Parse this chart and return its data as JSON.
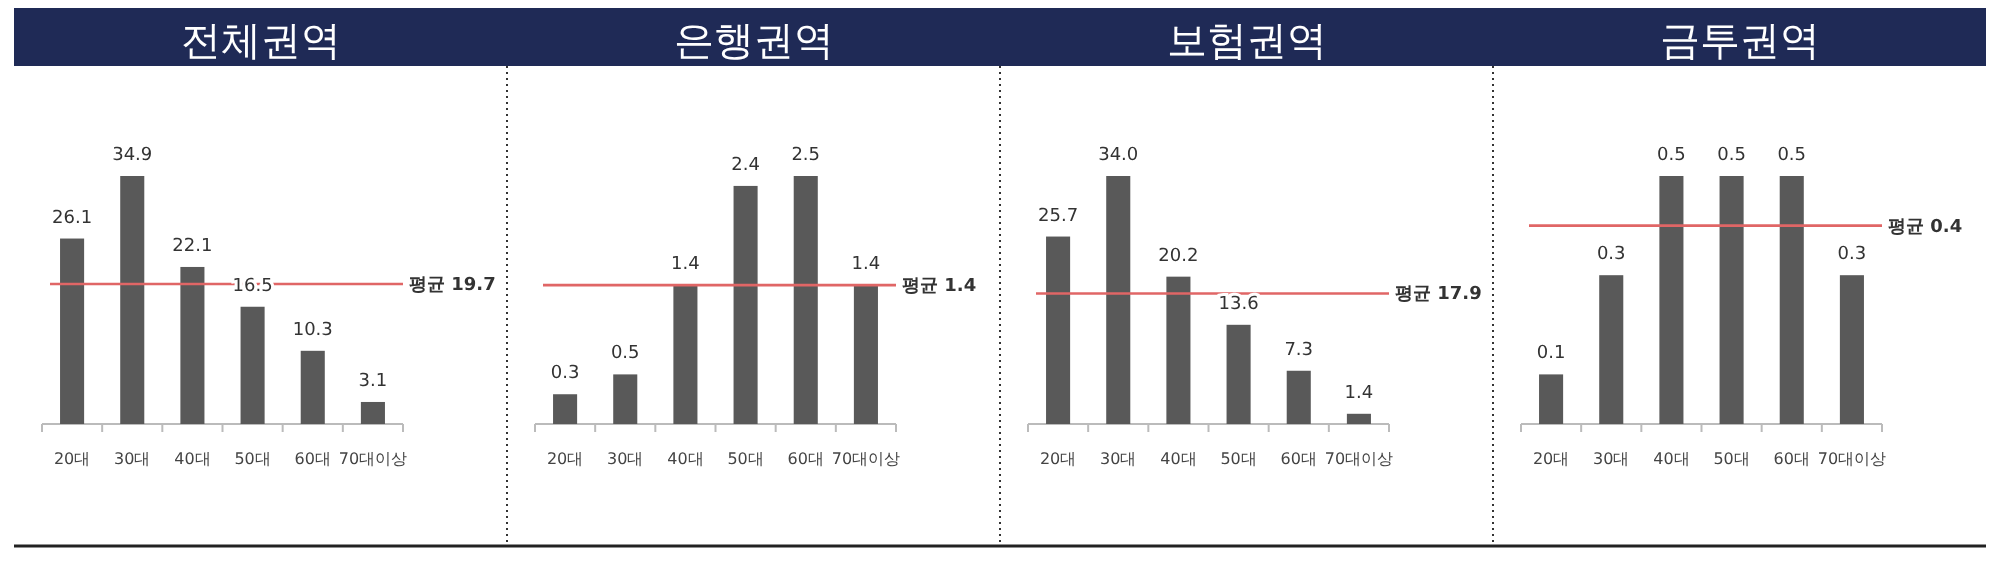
{
  "chart_data": [
    {
      "type": "bar",
      "title": "전체권역",
      "categories": [
        "20대",
        "30대",
        "40대",
        "50대",
        "60대",
        "70대이상"
      ],
      "values": [
        26.1,
        34.9,
        22.1,
        16.5,
        10.3,
        3.1
      ],
      "color": "#595959",
      "data_labels": true,
      "ref_lines": [
        {
          "axis": "y",
          "value": 19.7,
          "label": "평균 19.7",
          "color": "#e06666"
        }
      ]
    },
    {
      "type": "bar",
      "title": "은행권역",
      "categories": [
        "20대",
        "30대",
        "40대",
        "50대",
        "60대",
        "70대이상"
      ],
      "values": [
        0.3,
        0.5,
        1.4,
        2.4,
        2.5,
        1.4
      ],
      "color": "#595959",
      "data_labels": true,
      "ref_lines": [
        {
          "axis": "y",
          "value": 1.4,
          "label": "평균 1.4",
          "color": "#e06666"
        }
      ]
    },
    {
      "type": "bar",
      "title": "보험권역",
      "categories": [
        "20대",
        "30대",
        "40대",
        "50대",
        "60대",
        "70대이상"
      ],
      "values": [
        25.7,
        34.0,
        20.2,
        13.6,
        7.3,
        1.4
      ],
      "value_labels": [
        "25.7",
        "34.0",
        "20.2",
        "13.6",
        "7.3",
        "1.4"
      ],
      "color": "#595959",
      "ref_lines": [
        {
          "axis": "y",
          "value": 17.9,
          "label": "평균 17.9",
          "color": "#e06666"
        }
      ]
    },
    {
      "type": "bar",
      "title": "금투권역",
      "categories": [
        "20대",
        "30대",
        "40대",
        "50대",
        "60대",
        "70대이상"
      ],
      "values": [
        0.1,
        0.3,
        0.5,
        0.5,
        0.5,
        0.3
      ],
      "color": "#595959",
      "data_labels": true,
      "ref_lines": [
        {
          "axis": "y",
          "value": 0.4,
          "label": "평균 0.4",
          "color": "#e06666"
        }
      ]
    }
  ]
}
